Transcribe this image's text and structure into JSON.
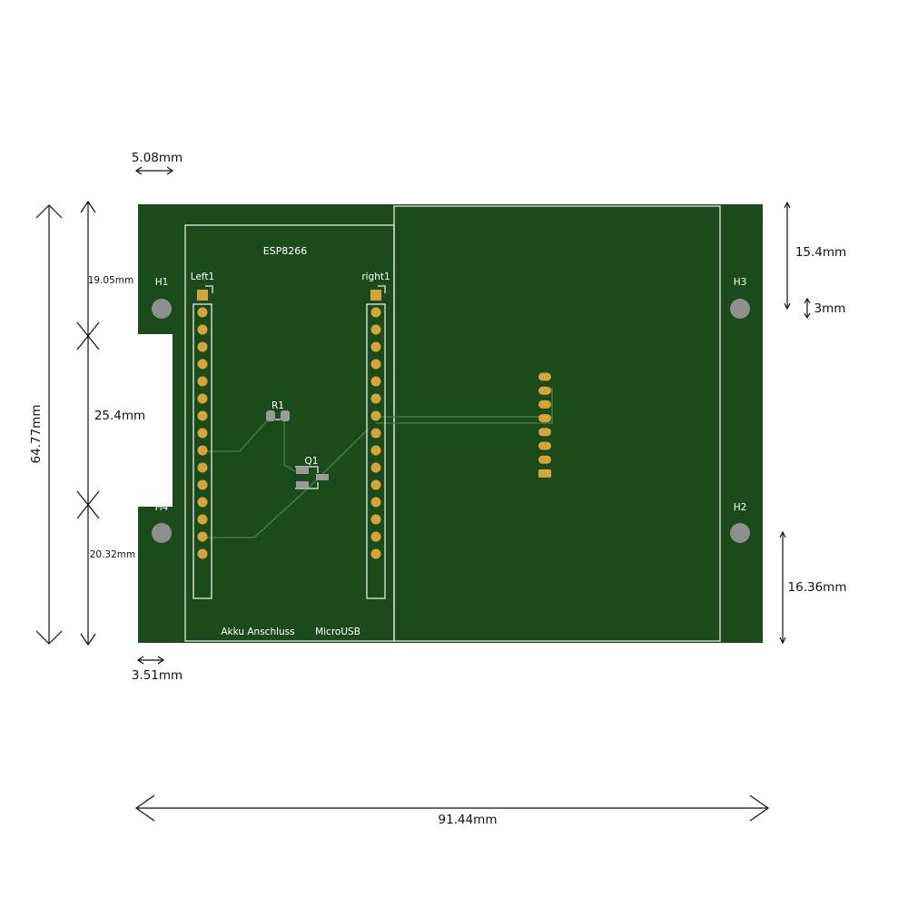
{
  "colors": {
    "board": "#1b4b1b",
    "pad": "#d6a43a",
    "hole": "#8f8f8f",
    "smd_pad": "#9a9a9a",
    "silkscreen": "#e8e8e8",
    "trace": "#3c7a3c"
  },
  "board": {
    "module_label": "ESP8266",
    "bottom_labels": {
      "battery": "Akku Anschluss",
      "usb": "MicroUSB"
    }
  },
  "connectors": {
    "left": {
      "ref": "Left1",
      "pin_count": 15
    },
    "right": {
      "ref": "right1",
      "pin_count": 15
    },
    "module_header_pin_count": 7
  },
  "components": {
    "resistor": "R1",
    "transistor": "Q1"
  },
  "mounting_holes": {
    "top_left": "H1",
    "bottom_right": "H2",
    "top_right": "H3",
    "bottom_left": "H4"
  },
  "dimensions": {
    "top_left_offset": "5.08mm",
    "bottom_left_offset": "3.51mm",
    "total_height": "64.77mm",
    "top_segment": "19.05mm",
    "middle_segment": "25.4mm",
    "bottom_segment": "20.32mm",
    "right_top": "15.4mm",
    "hole_size": "3mm",
    "right_bottom": "16.36mm",
    "total_width": "91.44mm"
  }
}
